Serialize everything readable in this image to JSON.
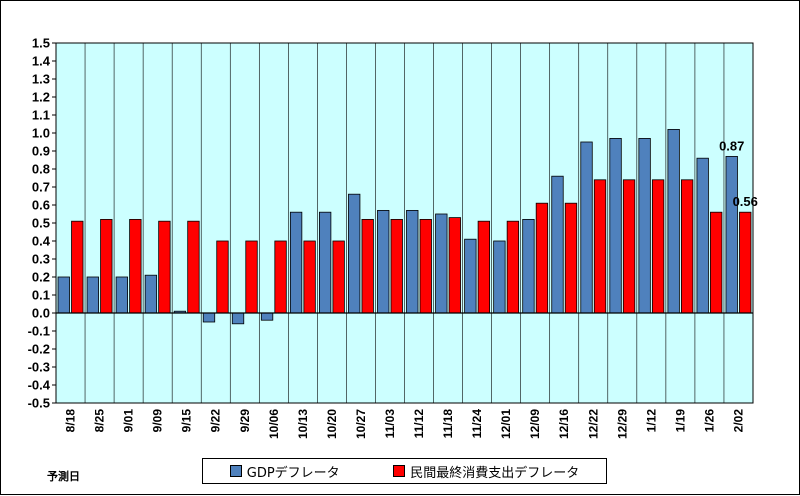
{
  "chart_data": {
    "type": "bar",
    "categories": [
      "8/18",
      "8/25",
      "9/01",
      "9/09",
      "9/15",
      "9/22",
      "9/29",
      "10/06",
      "10/13",
      "10/20",
      "10/27",
      "11/03",
      "11/12",
      "11/18",
      "11/24",
      "12/01",
      "12/09",
      "12/16",
      "12/22",
      "12/29",
      "1/12",
      "1/19",
      "1/26",
      "2/02"
    ],
    "series": [
      {
        "name": "GDPデフレータ",
        "color": "#4f81bd",
        "values": [
          0.2,
          0.2,
          0.2,
          0.21,
          0.01,
          -0.05,
          -0.06,
          -0.04,
          0.56,
          0.56,
          0.66,
          0.57,
          0.57,
          0.55,
          0.41,
          0.4,
          0.52,
          0.76,
          0.95,
          0.97,
          0.97,
          1.02,
          0.86,
          0.87
        ]
      },
      {
        "name": "民間最終消費支出デフレータ",
        "color": "#ff0000",
        "values": [
          0.51,
          0.52,
          0.52,
          0.51,
          0.51,
          0.4,
          0.4,
          0.4,
          0.4,
          0.4,
          0.52,
          0.52,
          0.52,
          0.53,
          0.51,
          0.51,
          0.61,
          0.61,
          0.74,
          0.74,
          0.74,
          0.74,
          0.56,
          0.56
        ]
      }
    ],
    "yticks": [
      "1.5",
      "1.4",
      "1.3",
      "1.2",
      "1.1",
      "1.0",
      "0.9",
      "0.8",
      "0.7",
      "0.6",
      "0.5",
      "0.4",
      "0.3",
      "0.2",
      "0.1",
      "0.0",
      "-0.1",
      "-0.2",
      "-0.3",
      "-0.4",
      "-0.5"
    ],
    "ylim": [
      -0.5,
      1.5
    ],
    "xlabel": "予測日",
    "ylabel": "",
    "title": "",
    "data_labels": [
      {
        "series": 0,
        "category": "2/02",
        "text": "0.87"
      },
      {
        "series": 1,
        "category": "2/02",
        "text": "0.56"
      }
    ],
    "plot_background": "#ccffff",
    "grid": "vertical-per-category",
    "legend_position": "bottom"
  }
}
